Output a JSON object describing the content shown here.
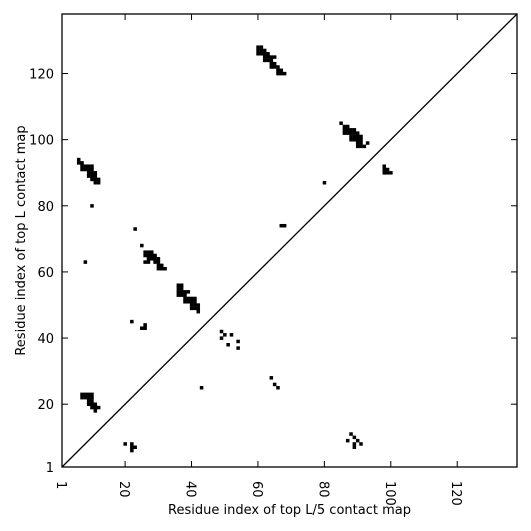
{
  "chart_data": {
    "type": "heatmap",
    "title": "",
    "xlabel": "Residue index of top L/5 contact map",
    "ylabel": "Residue index of top L contact map",
    "xlim": [
      1,
      138
    ],
    "ylim": [
      1,
      138
    ],
    "x_ticks": [
      1,
      20,
      40,
      60,
      80,
      100,
      120
    ],
    "y_ticks": [
      1,
      20,
      40,
      60,
      80,
      100,
      120
    ],
    "diagonal": {
      "from": [
        1,
        1
      ],
      "to": [
        138,
        138
      ]
    },
    "colors": {
      "contact": "#000000",
      "background": "#ffffff",
      "frame": "#000000"
    },
    "upper_triangle_contacts": [
      [
        60,
        128
      ],
      [
        61,
        128
      ],
      [
        60,
        127
      ],
      [
        61,
        127
      ],
      [
        62,
        127
      ],
      [
        60,
        126
      ],
      [
        61,
        126
      ],
      [
        62,
        126
      ],
      [
        63,
        126
      ],
      [
        62,
        125
      ],
      [
        63,
        125
      ],
      [
        64,
        125
      ],
      [
        65,
        125
      ],
      [
        62,
        124
      ],
      [
        63,
        124
      ],
      [
        64,
        124
      ],
      [
        64,
        123
      ],
      [
        65,
        123
      ],
      [
        64,
        122
      ],
      [
        65,
        122
      ],
      [
        66,
        122
      ],
      [
        66,
        121
      ],
      [
        67,
        121
      ],
      [
        66,
        120
      ],
      [
        67,
        120
      ],
      [
        68,
        120
      ],
      [
        85,
        105
      ],
      [
        86,
        104
      ],
      [
        87,
        104
      ],
      [
        86,
        103
      ],
      [
        87,
        103
      ],
      [
        88,
        103
      ],
      [
        89,
        103
      ],
      [
        86,
        102
      ],
      [
        87,
        102
      ],
      [
        88,
        102
      ],
      [
        89,
        102
      ],
      [
        90,
        102
      ],
      [
        88,
        101
      ],
      [
        89,
        101
      ],
      [
        90,
        101
      ],
      [
        91,
        101
      ],
      [
        88,
        100
      ],
      [
        89,
        100
      ],
      [
        90,
        100
      ],
      [
        91,
        100
      ],
      [
        90,
        99
      ],
      [
        91,
        99
      ],
      [
        93,
        99
      ],
      [
        90,
        98
      ],
      [
        91,
        98
      ],
      [
        92,
        98
      ],
      [
        98,
        92
      ],
      [
        98,
        91
      ],
      [
        99,
        91
      ],
      [
        98,
        90
      ],
      [
        99,
        90
      ],
      [
        100,
        90
      ],
      [
        6,
        94
      ],
      [
        6,
        93
      ],
      [
        7,
        93
      ],
      [
        7,
        92
      ],
      [
        8,
        92
      ],
      [
        9,
        92
      ],
      [
        10,
        92
      ],
      [
        7,
        91
      ],
      [
        8,
        91
      ],
      [
        9,
        91
      ],
      [
        10,
        91
      ],
      [
        9,
        90
      ],
      [
        10,
        90
      ],
      [
        11,
        90
      ],
      [
        9,
        89
      ],
      [
        10,
        89
      ],
      [
        11,
        89
      ],
      [
        10,
        88
      ],
      [
        11,
        88
      ],
      [
        12,
        88
      ],
      [
        11,
        87
      ],
      [
        12,
        87
      ],
      [
        80,
        87
      ],
      [
        10,
        80
      ],
      [
        67,
        74
      ],
      [
        68,
        74
      ],
      [
        23,
        73
      ],
      [
        25,
        68
      ],
      [
        8,
        63
      ],
      [
        26,
        66
      ],
      [
        27,
        66
      ],
      [
        28,
        66
      ],
      [
        26,
        65
      ],
      [
        27,
        65
      ],
      [
        28,
        65
      ],
      [
        29,
        65
      ],
      [
        27,
        64
      ],
      [
        28,
        64
      ],
      [
        29,
        64
      ],
      [
        30,
        64
      ],
      [
        26,
        63
      ],
      [
        27,
        63
      ],
      [
        29,
        63
      ],
      [
        30,
        63
      ],
      [
        30,
        62
      ],
      [
        31,
        62
      ],
      [
        30,
        61
      ],
      [
        31,
        61
      ],
      [
        32,
        61
      ],
      [
        36,
        56
      ],
      [
        37,
        56
      ],
      [
        36,
        55
      ],
      [
        37,
        55
      ],
      [
        36,
        54
      ],
      [
        37,
        54
      ],
      [
        38,
        54
      ],
      [
        39,
        54
      ],
      [
        36,
        53
      ],
      [
        37,
        53
      ],
      [
        38,
        53
      ],
      [
        38,
        52
      ],
      [
        39,
        52
      ],
      [
        40,
        52
      ],
      [
        41,
        52
      ],
      [
        38,
        51
      ],
      [
        39,
        51
      ],
      [
        40,
        51
      ],
      [
        41,
        51
      ],
      [
        40,
        50
      ],
      [
        41,
        50
      ],
      [
        42,
        50
      ],
      [
        40,
        49
      ],
      [
        41,
        49
      ],
      [
        42,
        49
      ],
      [
        42,
        48
      ]
    ],
    "lower_triangle_contacts": [
      [
        22,
        45
      ],
      [
        25,
        43
      ],
      [
        26,
        43
      ],
      [
        26,
        44
      ],
      [
        49,
        42
      ],
      [
        50,
        41
      ],
      [
        52,
        41
      ],
      [
        49,
        40
      ],
      [
        54,
        39
      ],
      [
        51,
        38
      ],
      [
        54,
        37
      ],
      [
        64,
        28
      ],
      [
        65,
        26
      ],
      [
        66,
        25
      ],
      [
        43,
        25
      ],
      [
        7,
        23
      ],
      [
        8,
        23
      ],
      [
        9,
        23
      ],
      [
        10,
        23
      ],
      [
        7,
        22
      ],
      [
        8,
        22
      ],
      [
        9,
        22
      ],
      [
        10,
        22
      ],
      [
        9,
        21
      ],
      [
        10,
        21
      ],
      [
        9,
        20
      ],
      [
        10,
        20
      ],
      [
        11,
        20
      ],
      [
        10,
        19
      ],
      [
        11,
        19
      ],
      [
        12,
        19
      ],
      [
        11,
        18
      ],
      [
        20,
        8
      ],
      [
        22,
        8
      ],
      [
        22,
        7
      ],
      [
        23,
        7
      ],
      [
        22,
        6
      ],
      [
        88,
        11
      ],
      [
        89,
        10
      ],
      [
        87,
        9
      ],
      [
        90,
        9
      ],
      [
        89,
        8
      ],
      [
        91,
        8
      ],
      [
        89,
        7
      ]
    ]
  }
}
